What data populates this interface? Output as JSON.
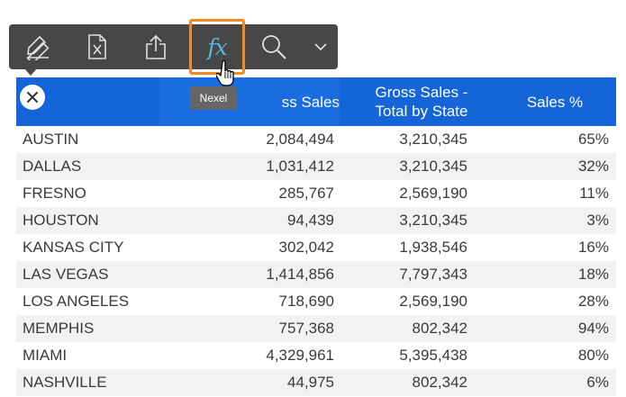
{
  "toolbar": {
    "tools": [
      {
        "icon": "ruler-pencil-icon"
      },
      {
        "icon": "excel-export-icon"
      },
      {
        "icon": "share-icon"
      },
      {
        "icon": "formula-fx-icon",
        "label": "fx",
        "active": true
      },
      {
        "icon": "search-icon"
      },
      {
        "icon": "chevron-down-icon"
      }
    ],
    "tooltip": "Nexel",
    "highlight_color": "#f08a24"
  },
  "table": {
    "header_color": "#1565d8",
    "headers": {
      "gross_sales": "ss Sales",
      "gross_sales_total_line1": "Gross Sales -",
      "gross_sales_total_line2": "Total by State",
      "sales_pct": "Sales %"
    },
    "rows": [
      {
        "city": "AUSTIN",
        "gross_sales": "2,084,494",
        "gross_sales_total": "3,210,345",
        "sales_pct": "65%"
      },
      {
        "city": "DALLAS",
        "gross_sales": "1,031,412",
        "gross_sales_total": "3,210,345",
        "sales_pct": "32%"
      },
      {
        "city": "FRESNO",
        "gross_sales": "285,767",
        "gross_sales_total": "2,569,190",
        "sales_pct": "11%"
      },
      {
        "city": "HOUSTON",
        "gross_sales": "94,439",
        "gross_sales_total": "3,210,345",
        "sales_pct": "3%"
      },
      {
        "city": "KANSAS CITY",
        "gross_sales": "302,042",
        "gross_sales_total": "1,938,546",
        "sales_pct": "16%"
      },
      {
        "city": "LAS VEGAS",
        "gross_sales": "1,414,856",
        "gross_sales_total": "7,797,343",
        "sales_pct": "18%"
      },
      {
        "city": "LOS ANGELES",
        "gross_sales": "718,690",
        "gross_sales_total": "2,569,190",
        "sales_pct": "28%"
      },
      {
        "city": "MEMPHIS",
        "gross_sales": "757,368",
        "gross_sales_total": "802,342",
        "sales_pct": "94%"
      },
      {
        "city": "MIAMI",
        "gross_sales": "4,329,961",
        "gross_sales_total": "5,395,438",
        "sales_pct": "80%"
      },
      {
        "city": "NASHVILLE",
        "gross_sales": "44,975",
        "gross_sales_total": "802,342",
        "sales_pct": "6%"
      }
    ]
  }
}
